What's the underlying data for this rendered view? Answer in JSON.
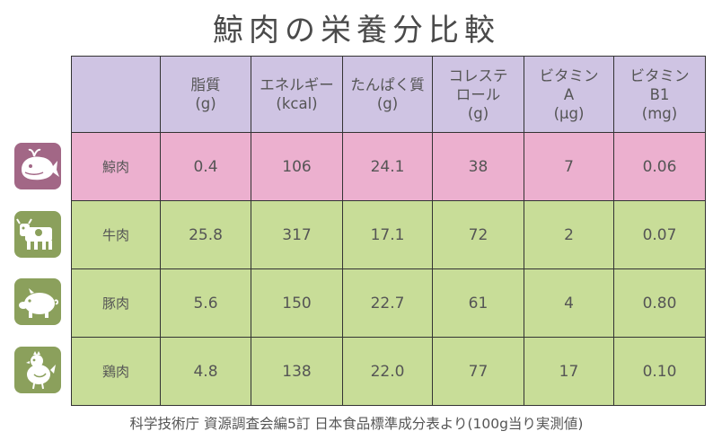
{
  "title": "鯨肉の栄養分比較",
  "colors": {
    "header_bg": "#cfc4e3",
    "whale_row_bg": "#ecb0cf",
    "other_row_bg": "#c8dd98",
    "whale_icon_bg": "#a26786",
    "other_icon_bg": "#8ba05c"
  },
  "table": {
    "headers": [
      "",
      "脂質\n(g)",
      "エネルギー\n(kcal)",
      "たんぱく質\n(g)",
      "コレステ\nロール\n(g)",
      "ビタミン\nA\n(μg)",
      "ビタミン\nB1\n(mg)"
    ],
    "rows": [
      {
        "icon": "whale-icon",
        "name": "鯨肉",
        "values": [
          "0.4",
          "106",
          "24.1",
          "38",
          "7",
          "0.06"
        ]
      },
      {
        "icon": "cow-icon",
        "name": "牛肉",
        "values": [
          "25.8",
          "317",
          "17.1",
          "72",
          "2",
          "0.07"
        ]
      },
      {
        "icon": "pig-icon",
        "name": "豚肉",
        "values": [
          "5.6",
          "150",
          "22.7",
          "61",
          "4",
          "0.80"
        ]
      },
      {
        "icon": "chicken-icon",
        "name": "鶏肉",
        "values": [
          "4.8",
          "138",
          "22.0",
          "77",
          "17",
          "0.10"
        ]
      }
    ]
  },
  "source": "科学技術庁 資源調査会編5訂 日本食品標準成分表より(100g当り実測値)"
}
